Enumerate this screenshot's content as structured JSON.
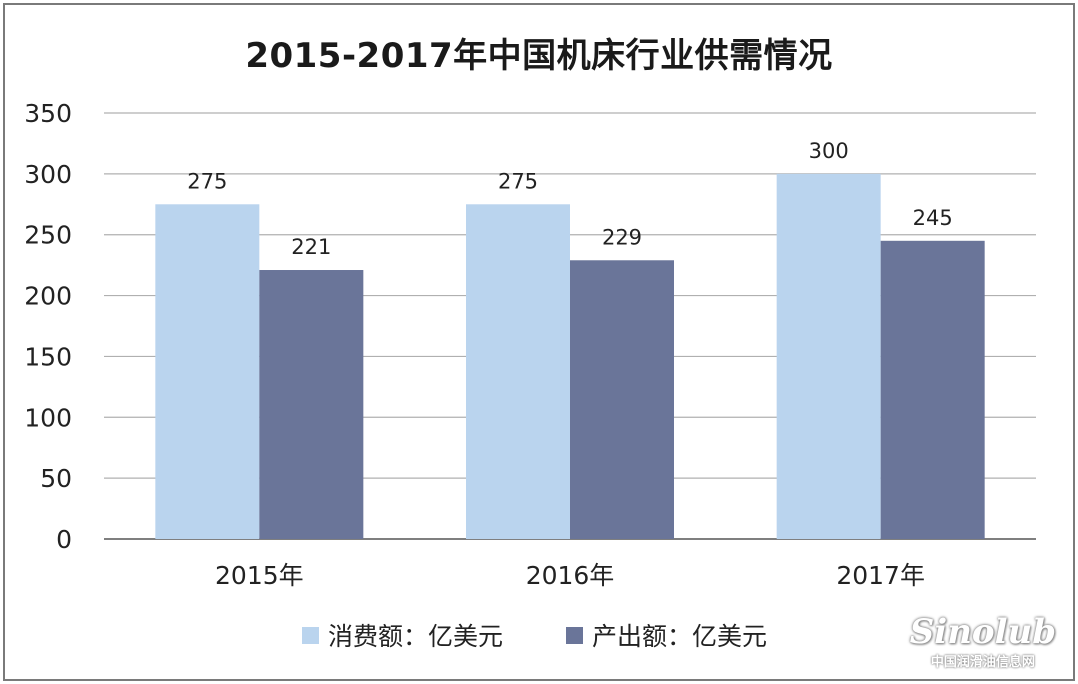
{
  "chart_data": {
    "type": "bar",
    "title": "2015-2017年中国机床行业供需情况",
    "categories": [
      "2015年",
      "2016年",
      "2017年"
    ],
    "series": [
      {
        "name": "消费额：亿美元",
        "values": [
          275,
          275,
          300
        ],
        "color": "#bad4ee"
      },
      {
        "name": "产出额：亿美元",
        "values": [
          221,
          229,
          245
        ],
        "color": "#6a7599"
      }
    ],
    "ylim": [
      0,
      350
    ],
    "yticks": [
      0,
      50,
      100,
      150,
      200,
      250,
      300,
      350
    ],
    "grid": true,
    "legend": "bottom",
    "data_labels": true
  },
  "watermark": {
    "logo": "Sinolub",
    "sub": "中国润滑油信息网"
  }
}
